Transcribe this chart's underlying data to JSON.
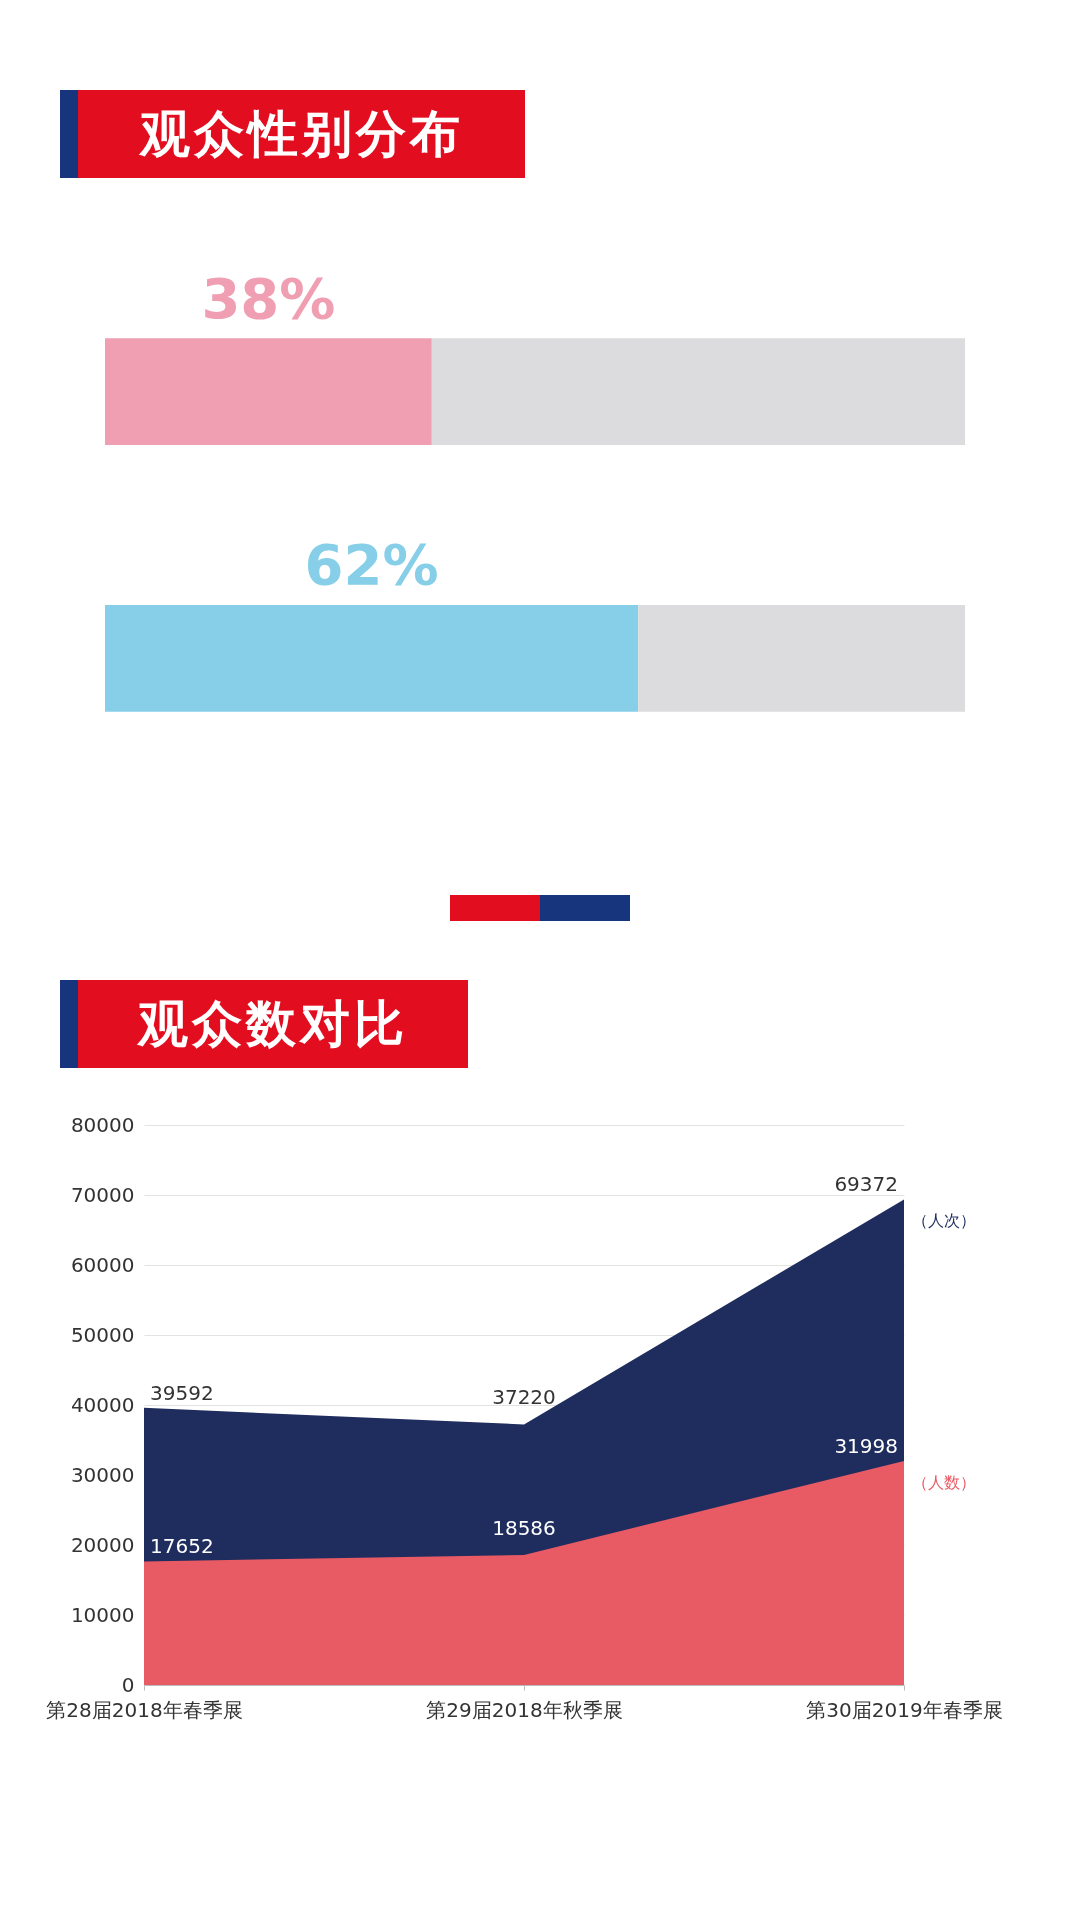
{
  "chart_data": [
    {
      "type": "bar",
      "orientation": "horizontal",
      "stacked": true,
      "title": "观众性别分布",
      "categories": [
        null,
        null
      ],
      "series": [
        {
          "colors": [
            "#f09fb3",
            "#87cfe8"
          ],
          "values": [
            38,
            62
          ],
          "value_labels": [
            "38%",
            "62%"
          ]
        },
        {
          "color": "#dcdbdd",
          "values": [
            62,
            38
          ]
        }
      ]
    },
    {
      "type": "area",
      "title": "观众数对比",
      "categories": [
        "第28届2018年春季展",
        "第29届2018年秋季展",
        "第30届2019年春季展"
      ],
      "series": [
        {
          "name": "（人次）",
          "color": "#1f2d5e",
          "values": [
            39592,
            37220,
            69372
          ]
        },
        {
          "name": "（人数）",
          "color": "#e85a64",
          "values": [
            17652,
            18586,
            31998
          ]
        }
      ],
      "ylim": [
        0,
        80000
      ],
      "yticks": [
        0,
        10000,
        20000,
        30000,
        40000,
        50000,
        60000,
        70000,
        80000
      ],
      "grid": "y",
      "data_labels": true
    }
  ]
}
